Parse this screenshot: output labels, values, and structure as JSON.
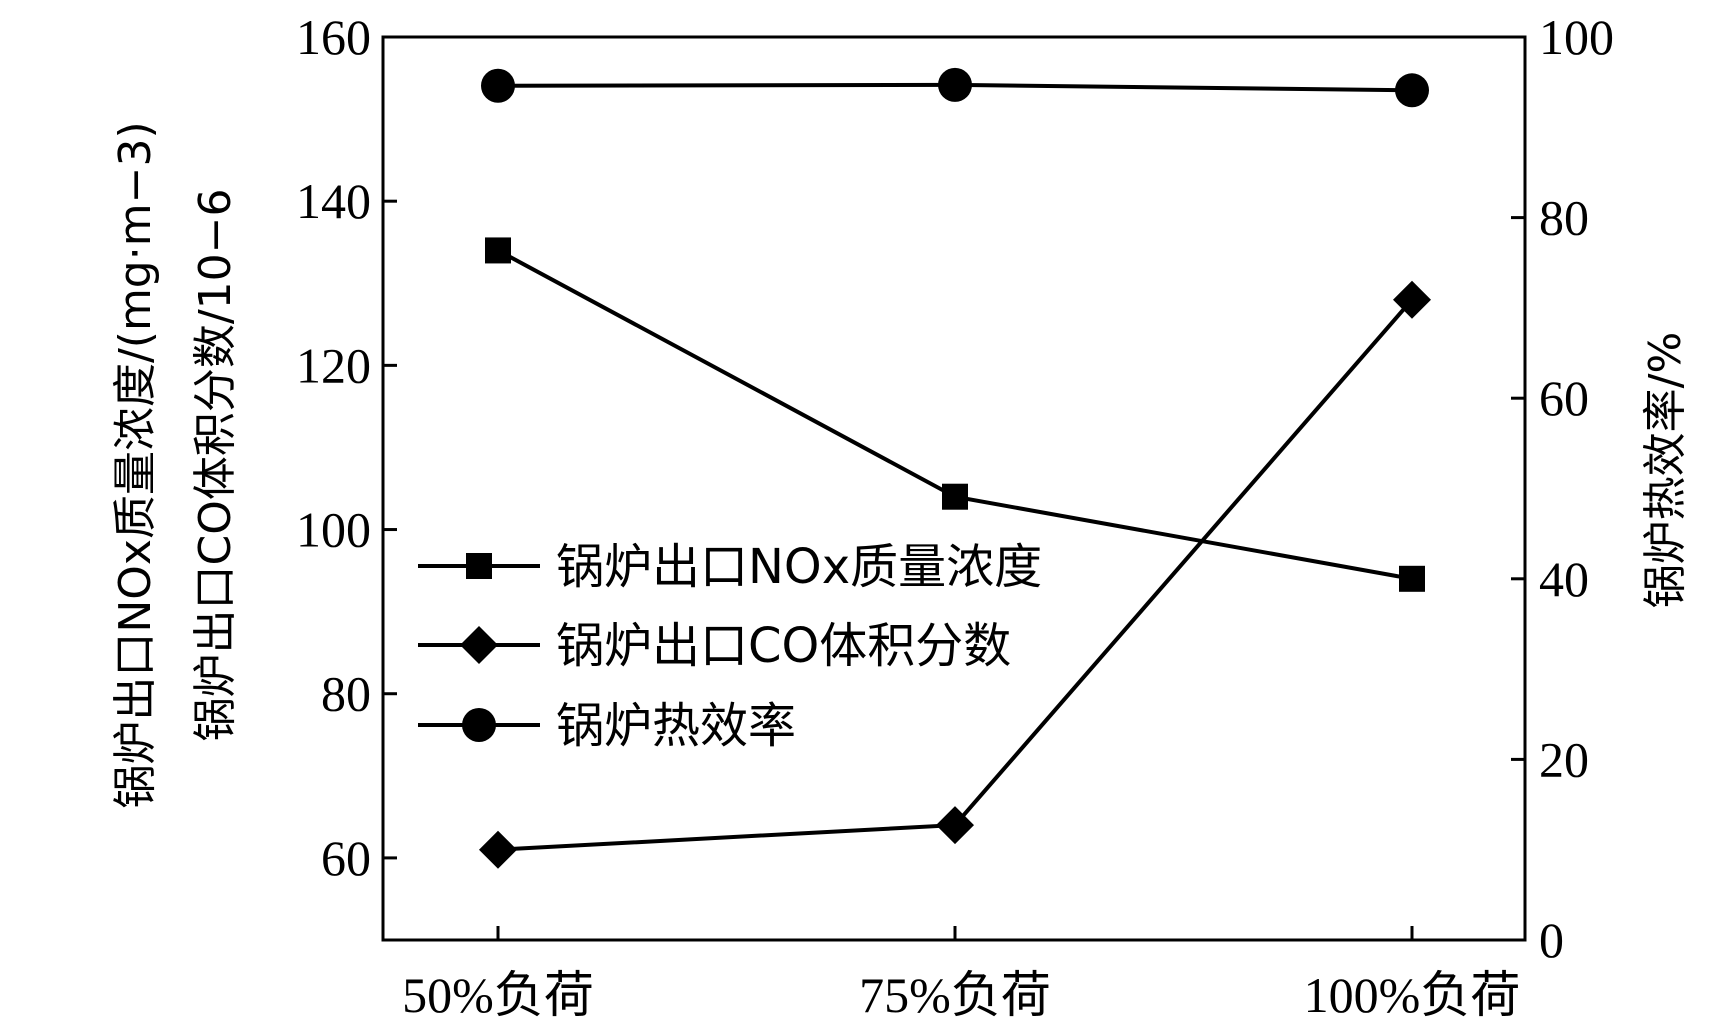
{
  "chart_data": {
    "type": "line",
    "categories": [
      "50%负荷",
      "75%负荷",
      "100%负荷"
    ],
    "series": [
      {
        "name": "锅炉出口NOx质量浓度",
        "axis": "left",
        "marker": "square",
        "values": [
          134,
          104,
          94
        ]
      },
      {
        "name": "锅炉出口CO体积分数",
        "axis": "left",
        "marker": "diamond",
        "values": [
          61,
          64,
          128
        ]
      },
      {
        "name": "锅炉热效率",
        "axis": "right",
        "marker": "circle",
        "values": [
          94.6,
          94.7,
          94.1
        ]
      }
    ],
    "y_left": {
      "label_line1": "锅炉出口NOx质量浓度/(mg·m−3)",
      "label_line2": "锅炉出口CO体积分数/10−6",
      "ylim": [
        50,
        160
      ],
      "ticks": [
        "60",
        "80",
        "100",
        "120",
        "140",
        "160"
      ]
    },
    "y_right": {
      "label": "锅炉热效率/%",
      "ylim": [
        0,
        100
      ],
      "ticks": [
        "0",
        "20",
        "40",
        "60",
        "80",
        "100"
      ]
    },
    "legend_placement": "center-left",
    "grid": false,
    "colors": {
      "line": "#000000",
      "marker": "#000000"
    }
  }
}
